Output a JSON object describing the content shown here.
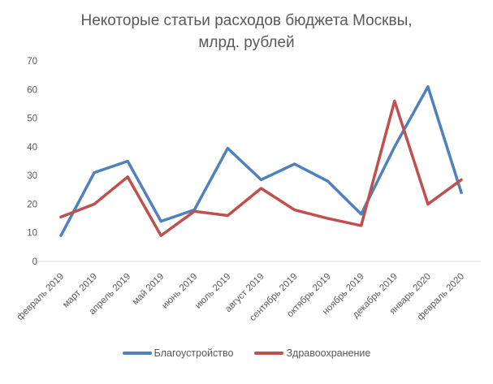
{
  "title": {
    "line1": "Некоторые статьи расходов бюджета Москвы,",
    "line2": "млрд. рублей"
  },
  "chart_data": {
    "type": "line",
    "title": "Некоторые статьи расходов бюджета Москвы, млрд. рублей",
    "categories": [
      "февраль 2019",
      "март 2019",
      "апрель 2019",
      "май 2019",
      "июнь 2019",
      "июль 2019",
      "август 2019",
      "сентябрь 2019",
      "октябрь 2019",
      "ноябрь 2019",
      "декабрь 2019",
      "январь 2020",
      "февраль 2020"
    ],
    "series": [
      {
        "name": "Благоустройство",
        "color": "#4F81BD",
        "values": [
          9,
          31,
          35,
          14,
          18,
          39.5,
          28.5,
          34,
          28,
          16.5,
          40,
          61,
          24
        ]
      },
      {
        "name": "Здравоохранение",
        "color": "#C0504D",
        "values": [
          15.5,
          20,
          29.5,
          9,
          17.5,
          16,
          25.5,
          18,
          15,
          12.5,
          56,
          20,
          28.5
        ]
      }
    ],
    "yticks": [
      0,
      10,
      20,
      30,
      40,
      50,
      60,
      70
    ],
    "ylim": [
      0,
      70
    ],
    "xlabel": "",
    "ylabel": "",
    "grid": false,
    "legend_position": "bottom",
    "axis_color": "#D9D9D9",
    "text_color": "#595959"
  }
}
